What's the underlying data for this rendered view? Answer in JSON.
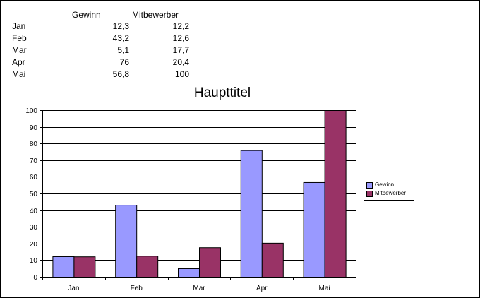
{
  "table": {
    "headers": [
      "Gewinn",
      "Mitbewerber"
    ],
    "rows": [
      {
        "label": "Jan",
        "gewinn": "12,3",
        "mitbewerber": "12,2"
      },
      {
        "label": "Feb",
        "gewinn": "43,2",
        "mitbewerber": "12,6"
      },
      {
        "label": "Mar",
        "gewinn": "5,1",
        "mitbewerber": "17,7"
      },
      {
        "label": "Apr",
        "gewinn": "76",
        "mitbewerber": "20,4"
      },
      {
        "label": "Mai",
        "gewinn": "56,8",
        "mitbewerber": "100"
      }
    ]
  },
  "chart_data": {
    "type": "bar",
    "title": "Haupttitel",
    "categories": [
      "Jan",
      "Feb",
      "Mar",
      "Apr",
      "Mai"
    ],
    "series": [
      {
        "name": "Gewinn",
        "values": [
          12.3,
          43.2,
          5.1,
          76,
          56.8
        ],
        "color": "#9999ff"
      },
      {
        "name": "Mitbewerber",
        "values": [
          12.2,
          12.6,
          17.7,
          20.4,
          100
        ],
        "color": "#993366"
      }
    ],
    "ylim": [
      0,
      100
    ],
    "yticks": [
      "0",
      "10",
      "20",
      "30",
      "40",
      "50",
      "60",
      "70",
      "80",
      "90",
      "100"
    ],
    "grid": true,
    "legend": "right"
  }
}
